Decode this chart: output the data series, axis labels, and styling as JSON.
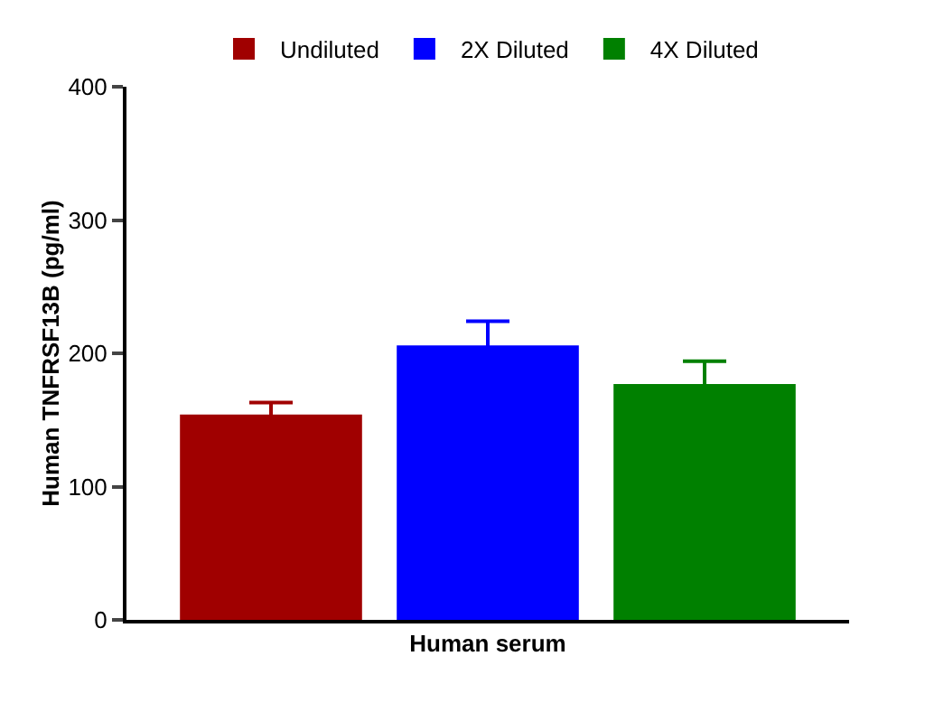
{
  "chart_data": {
    "type": "bar",
    "ylabel": "Human TNFRSF13B (pg/ml)",
    "categories": [
      "Human serum"
    ],
    "series": [
      {
        "name": "Undiluted",
        "color": "#a00000",
        "values": [
          154
        ],
        "errors": [
          9
        ]
      },
      {
        "name": "2X Diluted",
        "color": "#0000ff",
        "values": [
          206
        ],
        "errors": [
          18
        ]
      },
      {
        "name": "4X Diluted",
        "color": "#008000",
        "values": [
          177
        ],
        "errors": [
          17
        ]
      }
    ],
    "ylim": [
      0,
      400
    ],
    "yticks": [
      0,
      100,
      200,
      300,
      400
    ],
    "grid": false,
    "legend": "top"
  }
}
